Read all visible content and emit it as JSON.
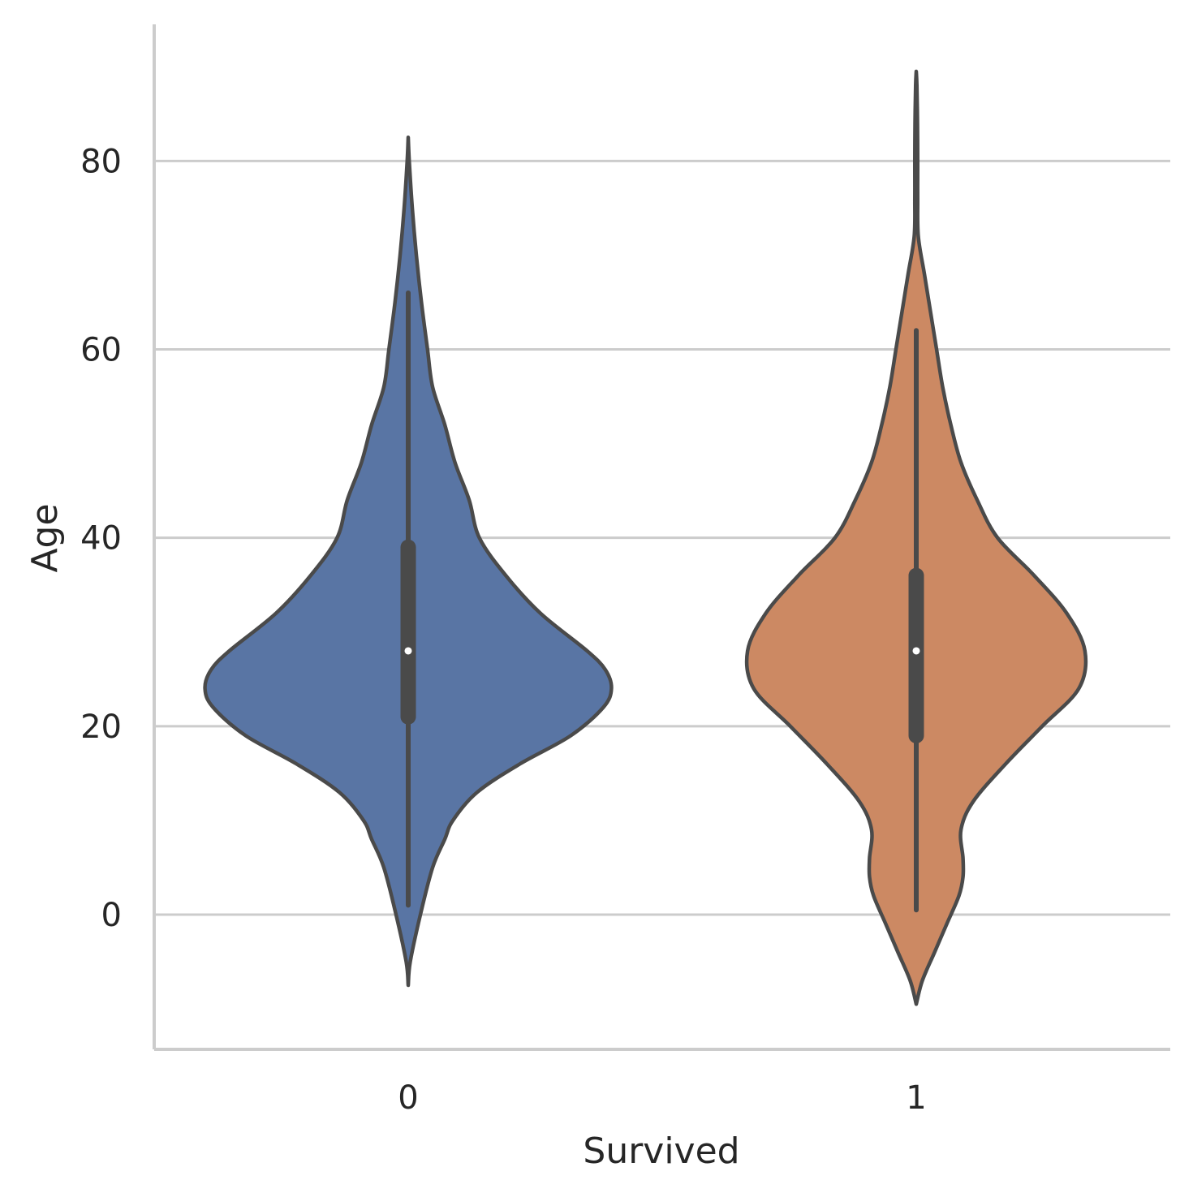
{
  "chart_data": {
    "type": "violin",
    "title": "",
    "xlabel": "Survived",
    "ylabel": "Age",
    "categories": [
      "0",
      "1"
    ],
    "ylim": [
      -14.3,
      94.5
    ],
    "yticks": [
      0,
      20,
      40,
      60,
      80
    ],
    "grid": "y",
    "colors": [
      "#5975a4",
      "#cc8963"
    ],
    "violins": [
      {
        "category": "0",
        "color": "#5975a4",
        "density": [
          [
            -7.5,
            0.0
          ],
          [
            -5,
            0.01
          ],
          [
            0,
            0.06
          ],
          [
            5,
            0.12
          ],
          [
            8,
            0.18
          ],
          [
            10,
            0.22
          ],
          [
            13,
            0.34
          ],
          [
            16,
            0.55
          ],
          [
            19,
            0.8
          ],
          [
            22,
            0.96
          ],
          [
            24,
            1.0
          ],
          [
            26,
            0.97
          ],
          [
            28,
            0.88
          ],
          [
            32,
            0.65
          ],
          [
            36,
            0.48
          ],
          [
            40,
            0.35
          ],
          [
            44,
            0.3
          ],
          [
            48,
            0.23
          ],
          [
            52,
            0.18
          ],
          [
            56,
            0.12
          ],
          [
            60,
            0.095
          ],
          [
            65,
            0.065
          ],
          [
            70,
            0.04
          ],
          [
            75,
            0.02
          ],
          [
            80,
            0.005
          ],
          [
            82.5,
            0.0
          ]
        ],
        "whisker": [
          1,
          66
        ],
        "quartiles": [
          21,
          39
        ],
        "median": 28
      },
      {
        "category": "1",
        "color": "#cc8963",
        "density": [
          [
            -9.5,
            0.0
          ],
          [
            -7,
            0.03
          ],
          [
            -4,
            0.09
          ],
          [
            -1,
            0.15
          ],
          [
            2,
            0.21
          ],
          [
            4,
            0.23
          ],
          [
            6,
            0.23
          ],
          [
            9,
            0.22
          ],
          [
            12,
            0.28
          ],
          [
            16,
            0.44
          ],
          [
            20,
            0.62
          ],
          [
            24,
            0.8
          ],
          [
            28,
            0.83
          ],
          [
            32,
            0.74
          ],
          [
            36,
            0.58
          ],
          [
            40,
            0.4
          ],
          [
            44,
            0.3
          ],
          [
            48,
            0.22
          ],
          [
            52,
            0.17
          ],
          [
            56,
            0.13
          ],
          [
            60,
            0.1
          ],
          [
            64,
            0.07
          ],
          [
            68,
            0.04
          ],
          [
            72,
            0.01
          ],
          [
            76,
            0.007
          ],
          [
            80,
            0.007
          ],
          [
            84,
            0.006
          ],
          [
            88,
            0.003
          ],
          [
            89.5,
            0.0
          ]
        ],
        "whisker": [
          0.5,
          62
        ],
        "quartiles": [
          19,
          36
        ],
        "median": 28
      }
    ]
  }
}
